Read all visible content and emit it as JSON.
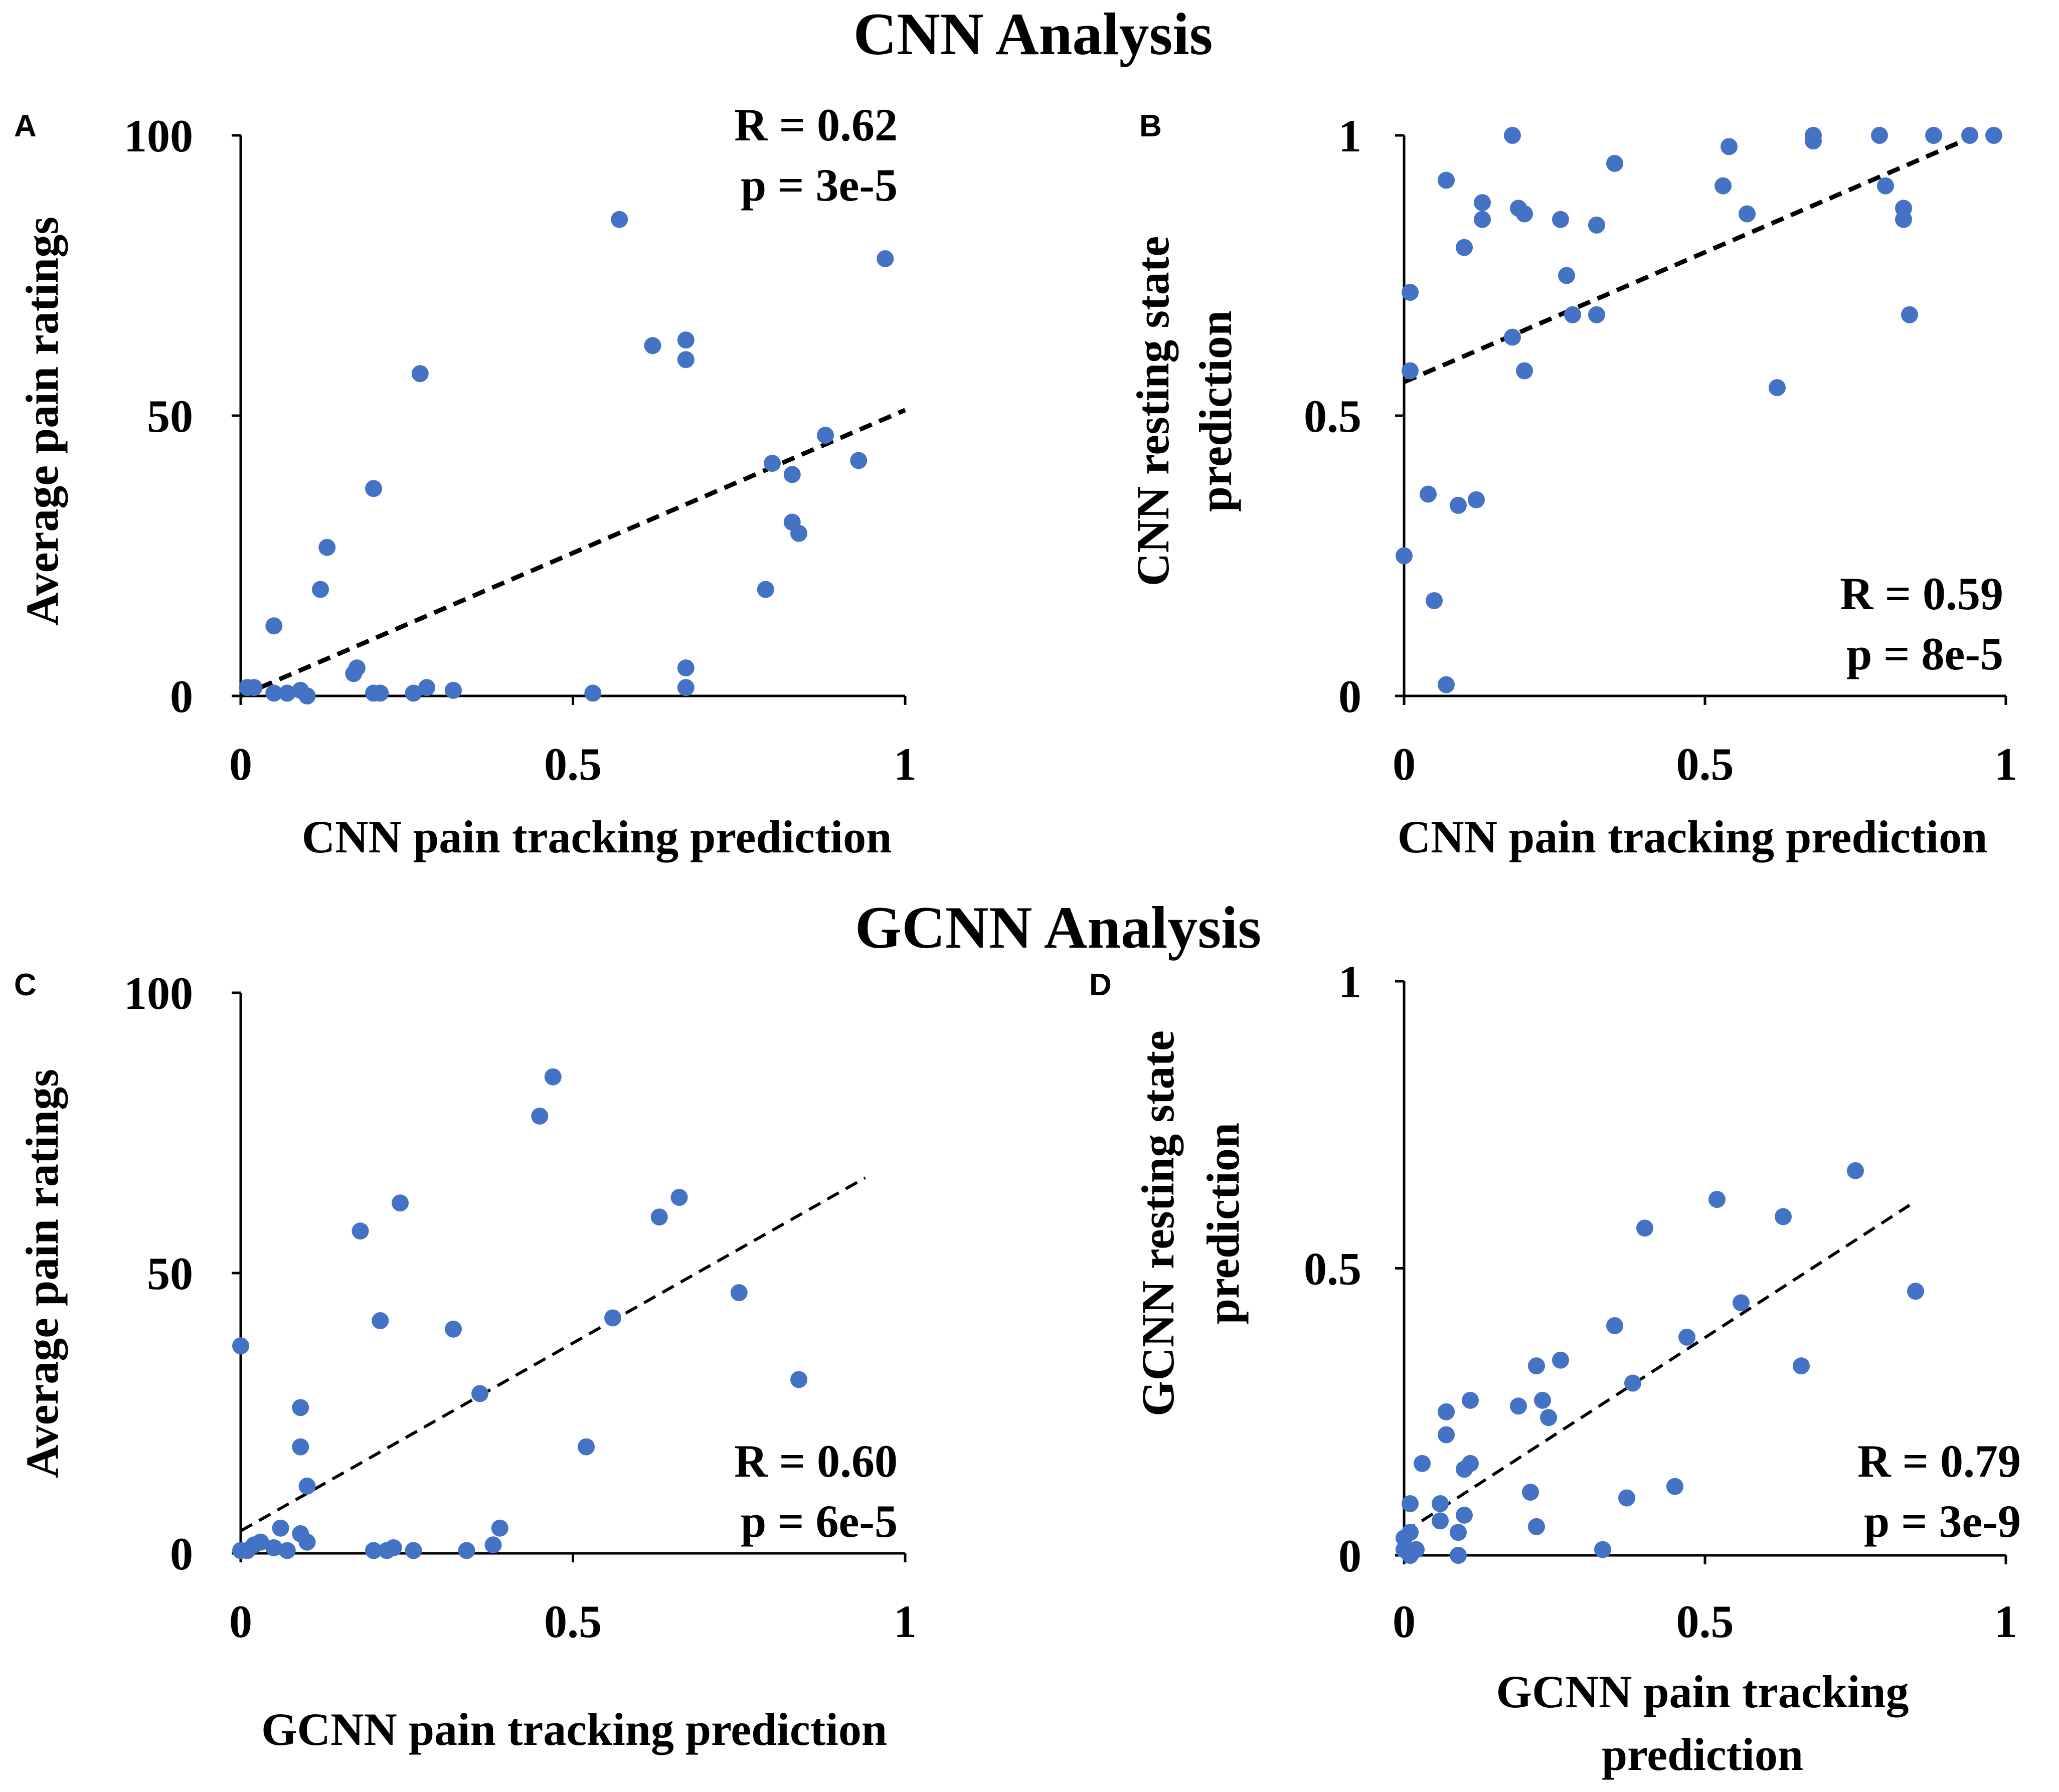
{
  "sections": [
    {
      "title": "CNN Analysis"
    },
    {
      "title": "GCNN Analysis"
    }
  ],
  "colors": {
    "point": "#4472C4",
    "axis": "#000000",
    "trend": "#000000"
  },
  "chart_data": [
    {
      "panel": "A",
      "type": "scatter",
      "title": "",
      "xlabel": [
        "CNN pain tracking prediction"
      ],
      "ylabel": [
        "Average pain ratings"
      ],
      "xlim": [
        0,
        1
      ],
      "ylim": [
        0,
        100
      ],
      "xticks": [
        "0",
        "0.5",
        "1"
      ],
      "yticks": [
        "0",
        "50",
        "100"
      ],
      "stats": {
        "r": "R = 0.62",
        "p": "p = 3e-5"
      },
      "trendline": {
        "x": [
          0.0,
          1.0
        ],
        "y": [
          0,
          51
        ]
      },
      "points": [
        [
          0.01,
          1.5
        ],
        [
          0.02,
          1.5
        ],
        [
          0.05,
          0.5
        ],
        [
          0.07,
          0.5
        ],
        [
          0.09,
          1
        ],
        [
          0.1,
          0
        ],
        [
          0.05,
          12.5
        ],
        [
          0.12,
          19
        ],
        [
          0.13,
          26.5
        ],
        [
          0.17,
          4
        ],
        [
          0.175,
          5
        ],
        [
          0.2,
          0.5
        ],
        [
          0.21,
          0.5
        ],
        [
          0.2,
          37
        ],
        [
          0.26,
          0.5
        ],
        [
          0.28,
          1.5
        ],
        [
          0.27,
          57.5
        ],
        [
          0.32,
          1
        ],
        [
          0.53,
          0.5
        ],
        [
          0.57,
          85
        ],
        [
          0.62,
          62.5
        ],
        [
          0.67,
          63.5
        ],
        [
          0.67,
          60
        ],
        [
          0.67,
          5
        ],
        [
          0.67,
          1.5
        ],
        [
          0.79,
          19
        ],
        [
          0.8,
          41.5
        ],
        [
          0.83,
          39.5
        ],
        [
          0.83,
          31
        ],
        [
          0.84,
          29
        ],
        [
          0.88,
          46.5
        ],
        [
          0.93,
          42
        ],
        [
          0.97,
          78
        ]
      ]
    },
    {
      "panel": "B",
      "type": "scatter",
      "title": "",
      "xlabel": [
        "CNN pain tracking prediction"
      ],
      "ylabel": [
        "CNN resting state",
        "prediction"
      ],
      "xlim": [
        0,
        1
      ],
      "ylim": [
        0,
        1
      ],
      "xticks": [
        "0",
        "0.5",
        "1"
      ],
      "yticks": [
        "0",
        "0.5",
        "1"
      ],
      "stats": {
        "r": "R = 0.59",
        "p": "p = 8e-5"
      },
      "trendline": {
        "x": [
          0.0,
          0.95
        ],
        "y": [
          0.56,
          1.0
        ]
      },
      "points": [
        [
          0.0,
          0.25
        ],
        [
          0.01,
          0.58
        ],
        [
          0.01,
          0.72
        ],
        [
          0.04,
          0.36
        ],
        [
          0.05,
          0.17
        ],
        [
          0.07,
          0.02
        ],
        [
          0.07,
          0.92
        ],
        [
          0.09,
          0.34
        ],
        [
          0.1,
          0.8
        ],
        [
          0.12,
          0.35
        ],
        [
          0.13,
          0.88
        ],
        [
          0.13,
          0.85
        ],
        [
          0.18,
          0.64
        ],
        [
          0.18,
          1.0
        ],
        [
          0.19,
          0.87
        ],
        [
          0.2,
          0.86
        ],
        [
          0.2,
          0.58
        ],
        [
          0.26,
          0.85
        ],
        [
          0.27,
          0.75
        ],
        [
          0.28,
          0.68
        ],
        [
          0.32,
          0.84
        ],
        [
          0.32,
          0.68
        ],
        [
          0.35,
          0.95
        ],
        [
          0.53,
          0.91
        ],
        [
          0.54,
          0.98
        ],
        [
          0.57,
          0.86
        ],
        [
          0.62,
          0.55
        ],
        [
          0.68,
          0.99
        ],
        [
          0.68,
          1.0
        ],
        [
          0.79,
          1.0
        ],
        [
          0.8,
          0.91
        ],
        [
          0.83,
          0.87
        ],
        [
          0.83,
          0.85
        ],
        [
          0.84,
          0.68
        ],
        [
          0.88,
          1.0
        ],
        [
          0.94,
          1.0
        ],
        [
          0.98,
          1.0
        ]
      ]
    },
    {
      "panel": "C",
      "type": "scatter",
      "title": "",
      "xlabel": [
        "GCNN pain tracking prediction"
      ],
      "ylabel": [
        "Average pain ratings"
      ],
      "xlim": [
        0,
        1
      ],
      "ylim": [
        0,
        100
      ],
      "xticks": [
        "0",
        "0.5",
        "1"
      ],
      "yticks": [
        "0",
        "50",
        "100"
      ],
      "stats": {
        "r": "R = 0.60",
        "p": "p = 6e-5"
      },
      "trendline": {
        "x": [
          0.0,
          0.94
        ],
        "y": [
          4,
          67
        ]
      },
      "points": [
        [
          0.0,
          37
        ],
        [
          0.0,
          0.5
        ],
        [
          0.01,
          0.5
        ],
        [
          0.02,
          1.5
        ],
        [
          0.03,
          2
        ],
        [
          0.05,
          1
        ],
        [
          0.06,
          4.5
        ],
        [
          0.07,
          0.5
        ],
        [
          0.09,
          26
        ],
        [
          0.09,
          19
        ],
        [
          0.09,
          3.5
        ],
        [
          0.1,
          12
        ],
        [
          0.1,
          2
        ],
        [
          0.18,
          57.5
        ],
        [
          0.2,
          0.5
        ],
        [
          0.21,
          41.5
        ],
        [
          0.22,
          0.5
        ],
        [
          0.23,
          1
        ],
        [
          0.24,
          62.5
        ],
        [
          0.26,
          0.5
        ],
        [
          0.32,
          40
        ],
        [
          0.34,
          0.5
        ],
        [
          0.36,
          28.5
        ],
        [
          0.38,
          1.5
        ],
        [
          0.39,
          4.5
        ],
        [
          0.45,
          78
        ],
        [
          0.47,
          85
        ],
        [
          0.52,
          19
        ],
        [
          0.56,
          42
        ],
        [
          0.63,
          60
        ],
        [
          0.66,
          63.5
        ],
        [
          0.75,
          46.5
        ],
        [
          0.84,
          31
        ]
      ]
    },
    {
      "panel": "D",
      "type": "scatter",
      "title": "",
      "xlabel": [
        "GCNN pain tracking",
        "prediction"
      ],
      "ylabel": [
        "GCNN resting state",
        "prediction"
      ],
      "xlim": [
        0,
        1
      ],
      "ylim": [
        0,
        1
      ],
      "xticks": [
        "0",
        "0.5",
        "1"
      ],
      "yticks": [
        "0",
        "0.5",
        "1"
      ],
      "stats": {
        "r": "R = 0.79",
        "p": "p = 3e-9"
      },
      "trendline": {
        "x": [
          0.0,
          0.84
        ],
        "y": [
          0.04,
          0.61
        ]
      },
      "points": [
        [
          0.0,
          0.03
        ],
        [
          0.0,
          0.01
        ],
        [
          0.01,
          0.0
        ],
        [
          0.01,
          0.04
        ],
        [
          0.01,
          0.09
        ],
        [
          0.02,
          0.01
        ],
        [
          0.03,
          0.16
        ],
        [
          0.06,
          0.06
        ],
        [
          0.06,
          0.09
        ],
        [
          0.07,
          0.21
        ],
        [
          0.07,
          0.25
        ],
        [
          0.09,
          0.0
        ],
        [
          0.09,
          0.04
        ],
        [
          0.1,
          0.15
        ],
        [
          0.1,
          0.07
        ],
        [
          0.11,
          0.16
        ],
        [
          0.11,
          0.27
        ],
        [
          0.19,
          0.26
        ],
        [
          0.21,
          0.11
        ],
        [
          0.22,
          0.05
        ],
        [
          0.22,
          0.33
        ],
        [
          0.23,
          0.27
        ],
        [
          0.24,
          0.24
        ],
        [
          0.26,
          0.34
        ],
        [
          0.33,
          0.01
        ],
        [
          0.35,
          0.4
        ],
        [
          0.37,
          0.1
        ],
        [
          0.38,
          0.3
        ],
        [
          0.4,
          0.57
        ],
        [
          0.45,
          0.12
        ],
        [
          0.47,
          0.38
        ],
        [
          0.52,
          0.62
        ],
        [
          0.56,
          0.44
        ],
        [
          0.63,
          0.59
        ],
        [
          0.66,
          0.33
        ],
        [
          0.75,
          0.67
        ],
        [
          0.85,
          0.46
        ]
      ]
    }
  ]
}
